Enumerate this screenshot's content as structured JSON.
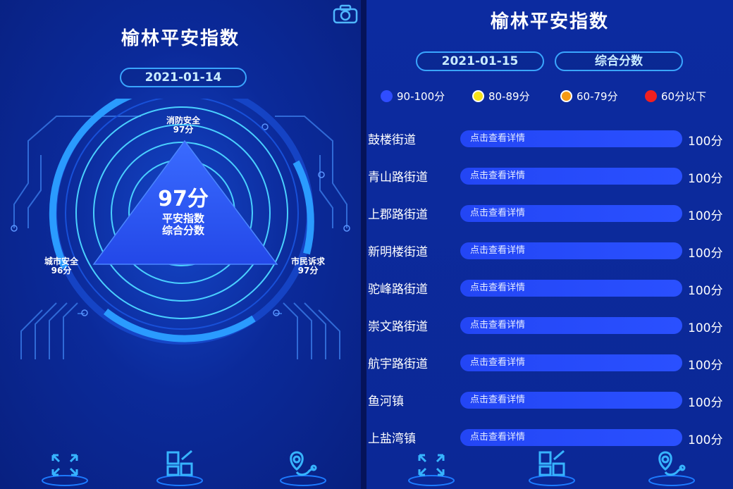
{
  "left": {
    "title": "榆林平安指数",
    "date": "2021-01-14",
    "center": {
      "score": "97分",
      "label_line1": "平安指数",
      "label_line2": "综合分数"
    },
    "vertices": [
      {
        "name": "消防安全",
        "score": "97分"
      },
      {
        "name": "城市安全",
        "score": "96分"
      },
      {
        "name": "市民诉求",
        "score": "97分"
      }
    ]
  },
  "right": {
    "title": "榆林平安指数",
    "date": "2021-01-15",
    "mode": "综合分数",
    "legend": [
      {
        "label": "90-100分",
        "color": "#2f4dff"
      },
      {
        "label": "80-89分",
        "color": "#f5e21a"
      },
      {
        "label": "60-79分",
        "color": "#f59a14"
      },
      {
        "label": "60分以下",
        "color": "#f21f1f"
      }
    ],
    "rows": [
      {
        "name": "鼓楼街道",
        "button": "点击查看详情",
        "score": "100分"
      },
      {
        "name": "青山路街道",
        "button": "点击查看详情",
        "score": "100分"
      },
      {
        "name": "上郡路街道",
        "button": "点击查看详情",
        "score": "100分"
      },
      {
        "name": "新明楼街道",
        "button": "点击查看详情",
        "score": "100分"
      },
      {
        "name": "驼峰路街道",
        "button": "点击查看详情",
        "score": "100分"
      },
      {
        "name": "崇文路街道",
        "button": "点击查看详情",
        "score": "100分"
      },
      {
        "name": "航宇路街道",
        "button": "点击查看详情",
        "score": "100分"
      },
      {
        "name": "鱼河镇",
        "button": "点击查看详情",
        "score": "100分"
      },
      {
        "name": "上盐湾镇",
        "button": "点击查看详情",
        "score": "100分"
      }
    ]
  },
  "nav": [
    {
      "icon": "expand-icon"
    },
    {
      "icon": "dashboard-icon"
    },
    {
      "icon": "location-icon"
    }
  ]
}
